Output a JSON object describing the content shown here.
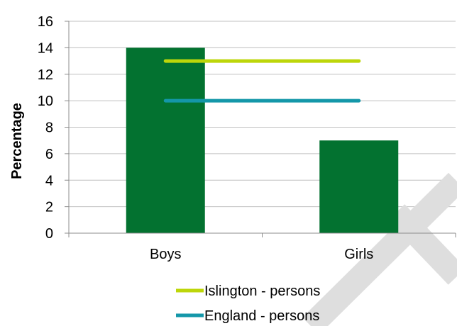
{
  "chart_data": {
    "type": "bar",
    "categories": [
      "Boys",
      "Girls"
    ],
    "values": [
      14,
      7
    ],
    "ylabel": "Percentage",
    "ylim": [
      0,
      16
    ],
    "y_ticks": [
      0,
      2,
      4,
      6,
      8,
      10,
      12,
      14,
      16
    ],
    "grid": true,
    "legend_position": "bottom",
    "bar_color": "#037230",
    "reference_lines": [
      {
        "name": "Islington - persons",
        "value": 13,
        "color": "#BDD60A"
      },
      {
        "name": "England - persons",
        "value": 10,
        "color": "#1497A9"
      }
    ]
  },
  "colors": {
    "grid": "#C0C0C0",
    "axis": "#8C8C8C",
    "text": "#000000",
    "watermark": "#DEDEDE"
  }
}
